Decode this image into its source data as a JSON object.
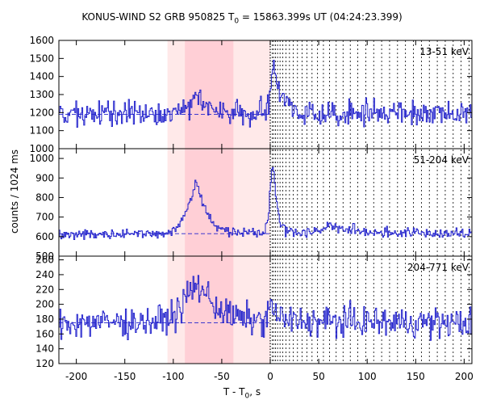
{
  "chart_data": {
    "type": "line",
    "title": {
      "prefix": "KONUS-WIND S2 GRB 950825 T",
      "sub": "0",
      "suffix": " = 15863.399s UT (04:24:23.399)"
    },
    "xlabel": {
      "prefix": "T - T",
      "sub": "0",
      "suffix": ", s"
    },
    "ylabel": "counts / 1024 ms",
    "xlim": [
      -218,
      208
    ],
    "xticks": [
      -200,
      -150,
      -100,
      -50,
      0,
      50,
      100,
      150,
      200
    ],
    "background_interval": [
      -106,
      0
    ],
    "highlight_interval": [
      -88,
      -38
    ],
    "trigger_time": 0,
    "colors": {
      "series": "#2222cc",
      "background_band": "#ffe9e9",
      "highlight_band": "#ffcfd6"
    },
    "panels": [
      {
        "name": "13-51 keV",
        "ylim": [
          1000,
          1600
        ],
        "yticks": [
          1000,
          1100,
          1200,
          1300,
          1400,
          1500,
          1600
        ],
        "background_level": 1190,
        "noise": 34,
        "profile": [
          [
            -218,
            1190
          ],
          [
            -100,
            1190
          ],
          [
            -92,
            1210
          ],
          [
            -84,
            1250
          ],
          [
            -78,
            1320
          ],
          [
            -72,
            1280
          ],
          [
            -60,
            1230
          ],
          [
            -48,
            1210
          ],
          [
            -30,
            1195
          ],
          [
            -5,
            1195
          ],
          [
            -1,
            1240
          ],
          [
            2,
            1430
          ],
          [
            5,
            1400
          ],
          [
            9,
            1300
          ],
          [
            16,
            1240
          ],
          [
            30,
            1200
          ],
          [
            208,
            1190
          ]
        ]
      },
      {
        "name": "51-204 keV",
        "ylim": [
          500,
          1050
        ],
        "yticks": [
          500,
          600,
          700,
          800,
          900,
          1000
        ],
        "background_level": 615,
        "noise": 13,
        "profile": [
          [
            -218,
            612
          ],
          [
            -102,
            618
          ],
          [
            -96,
            645
          ],
          [
            -90,
            700
          ],
          [
            -84,
            760
          ],
          [
            -80,
            820
          ],
          [
            -77,
            880
          ],
          [
            -74,
            860
          ],
          [
            -70,
            780
          ],
          [
            -64,
            700
          ],
          [
            -56,
            650
          ],
          [
            -44,
            630
          ],
          [
            -20,
            622
          ],
          [
            -6,
            625
          ],
          [
            -2,
            700
          ],
          [
            1,
            930
          ],
          [
            3,
            980
          ],
          [
            6,
            800
          ],
          [
            10,
            670
          ],
          [
            16,
            630
          ],
          [
            30,
            620
          ],
          [
            50,
            630
          ],
          [
            60,
            655
          ],
          [
            75,
            640
          ],
          [
            95,
            625
          ],
          [
            208,
            612
          ]
        ]
      },
      {
        "name": "204-771 keV",
        "ylim": [
          120,
          265
        ],
        "yticks": [
          120,
          140,
          160,
          180,
          200,
          220,
          240,
          260
        ],
        "background_level": 175,
        "noise": 10,
        "profile": [
          [
            -218,
            175
          ],
          [
            -115,
            177
          ],
          [
            -100,
            185
          ],
          [
            -92,
            195
          ],
          [
            -84,
            215
          ],
          [
            -76,
            225
          ],
          [
            -68,
            218
          ],
          [
            -58,
            200
          ],
          [
            -46,
            188
          ],
          [
            -30,
            180
          ],
          [
            -5,
            178
          ],
          [
            0,
            195
          ],
          [
            3,
            198
          ],
          [
            8,
            182
          ],
          [
            20,
            177
          ],
          [
            208,
            175
          ]
        ]
      }
    ]
  }
}
